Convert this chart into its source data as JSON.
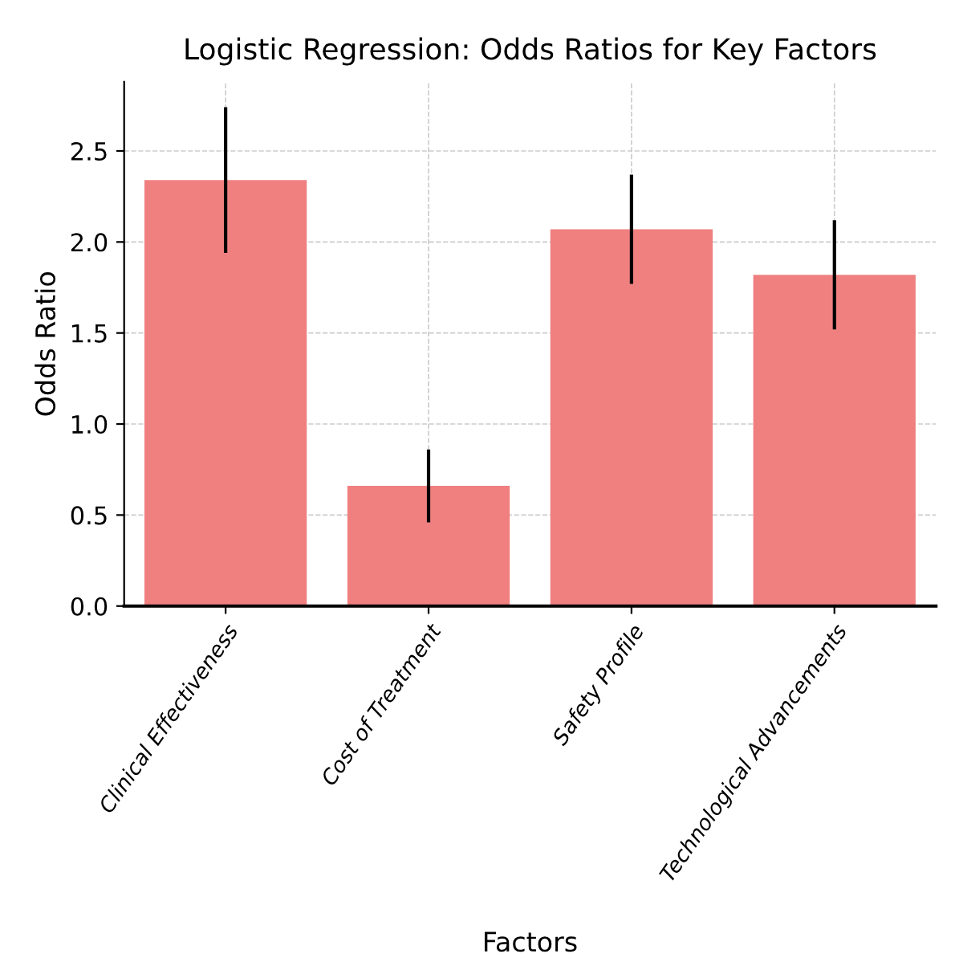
{
  "chart_data": {
    "type": "bar",
    "title": "Logistic Regression: Odds Ratios for Key Factors",
    "xlabel": "Factors",
    "ylabel": "Odds Ratio",
    "categories": [
      "Clinical Effectiveness",
      "Cost of Treatment",
      "Safety Profile",
      "Technological Advancements"
    ],
    "values": [
      2.34,
      0.66,
      2.07,
      1.82
    ],
    "errors": [
      0.4,
      0.2,
      0.3,
      0.3
    ],
    "color": "#f08080",
    "ylim": [
      0,
      2.88
    ],
    "yticks": [
      {
        "value": 0,
        "label": "0.0"
      },
      0.5,
      {
        "value": 1,
        "label": "1.0"
      },
      1.5,
      {
        "value": 2,
        "label": "2.0"
      },
      2.5
    ],
    "grid": true
  }
}
